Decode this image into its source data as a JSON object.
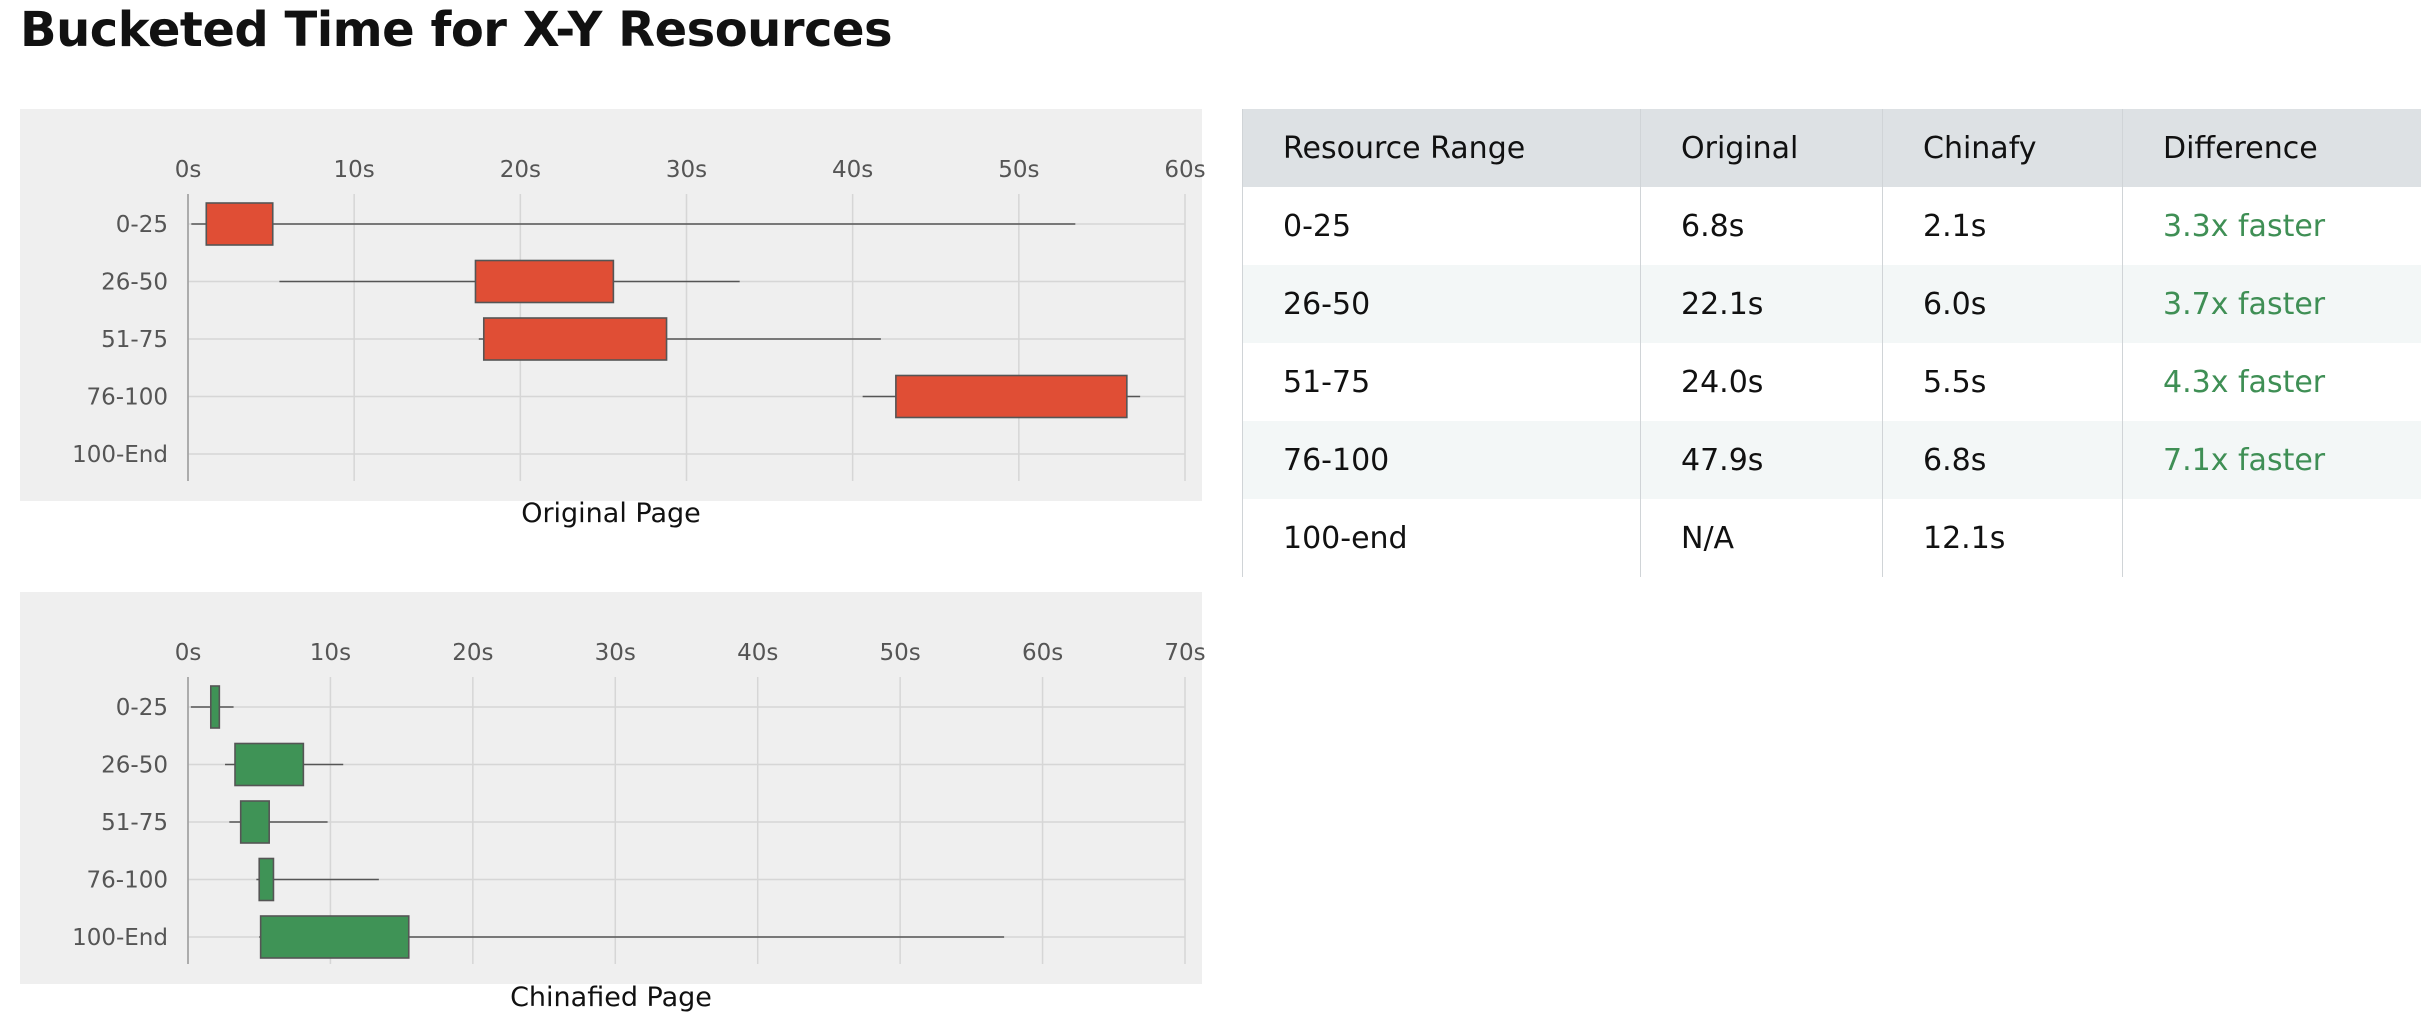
{
  "page_title": "Bucketed Time for X-Y Resources",
  "table": {
    "headers": [
      "Resource Range",
      "Original",
      "Chinafy",
      "Difference"
    ],
    "rows": [
      [
        "0-25",
        "6.8s",
        "2.1s",
        "3.3x faster"
      ],
      [
        "26-50",
        "22.1s",
        "6.0s",
        "3.7x faster"
      ],
      [
        "51-75",
        "24.0s",
        "5.5s",
        "4.3x faster"
      ],
      [
        "76-100",
        "47.9s",
        "6.8s",
        "7.1x faster"
      ],
      [
        "100-end",
        "N/A",
        "12.1s",
        ""
      ]
    ],
    "difference_color": "#3f8f55"
  },
  "chart_data": [
    {
      "type": "boxplot",
      "title": "Original Page",
      "xlim": [
        0,
        60
      ],
      "x_ticks": [
        0,
        10,
        20,
        30,
        40,
        50,
        60
      ],
      "x_tick_labels": [
        "0s",
        "10s",
        "20s",
        "30s",
        "40s",
        "50s",
        "60s"
      ],
      "categories": [
        "0-25",
        "26-50",
        "51-75",
        "76-100",
        "100-End"
      ],
      "grid": true,
      "color": "#e04e35",
      "boxes": [
        {
          "category": "0-25",
          "min": 0.2,
          "q1": 1.1,
          "q3": 5.1,
          "max": 53.4
        },
        {
          "category": "26-50",
          "min": 5.5,
          "q1": 17.3,
          "q3": 25.6,
          "max": 33.2
        },
        {
          "category": "51-75",
          "min": 17.5,
          "q1": 17.8,
          "q3": 28.8,
          "max": 41.7
        },
        {
          "category": "76-100",
          "min": 40.6,
          "q1": 42.6,
          "q3": 56.5,
          "max": 57.3
        },
        {
          "category": "100-End",
          "min": null,
          "q1": null,
          "q3": null,
          "max": null
        }
      ]
    },
    {
      "type": "boxplot",
      "title": "Chinafied Page",
      "xlim": [
        0,
        70
      ],
      "x_ticks": [
        0,
        10,
        20,
        30,
        40,
        50,
        60,
        70
      ],
      "x_tick_labels": [
        "0s",
        "10s",
        "20s",
        "30s",
        "40s",
        "50s",
        "60s",
        "70s"
      ],
      "categories": [
        "0-25",
        "26-50",
        "51-75",
        "76-100",
        "100-End"
      ],
      "grid": true,
      "color": "#3f9356",
      "boxes": [
        {
          "category": "0-25",
          "min": 0.2,
          "q1": 1.6,
          "q3": 2.2,
          "max": 3.2
        },
        {
          "category": "26-50",
          "min": 2.6,
          "q1": 3.3,
          "q3": 8.1,
          "max": 10.9
        },
        {
          "category": "51-75",
          "min": 2.9,
          "q1": 3.7,
          "q3": 5.7,
          "max": 9.8
        },
        {
          "category": "76-100",
          "min": 4.8,
          "q1": 5.0,
          "q3": 6.0,
          "max": 13.4
        },
        {
          "category": "100-End",
          "min": 5.0,
          "q1": 5.1,
          "q3": 15.5,
          "max": 57.3
        }
      ]
    }
  ]
}
